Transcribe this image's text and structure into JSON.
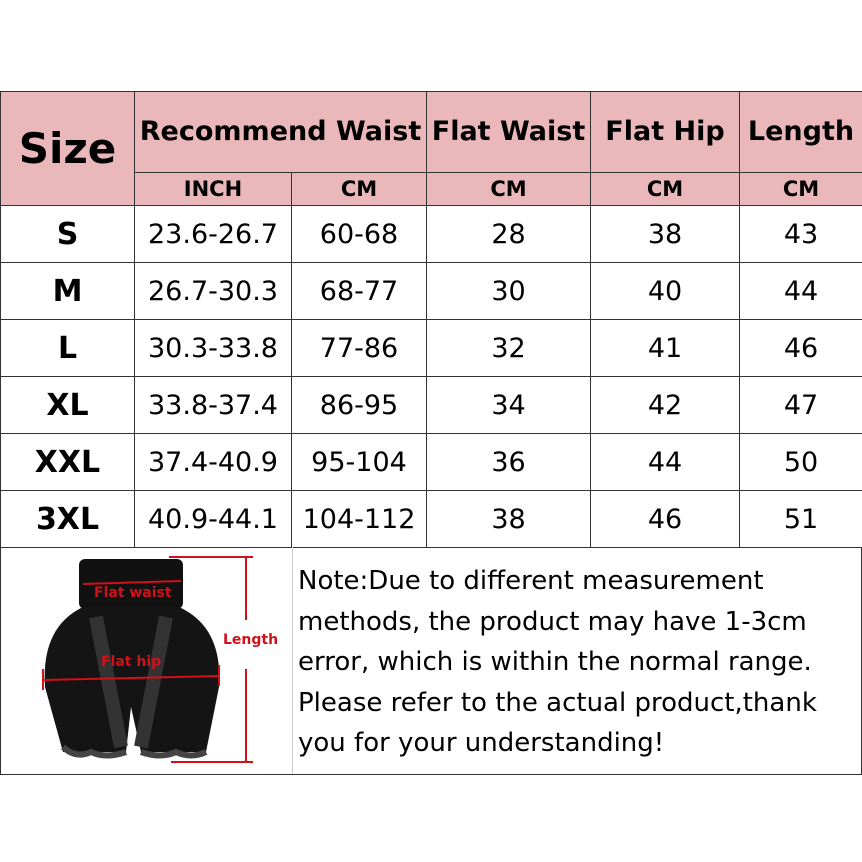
{
  "header": {
    "size": "Size",
    "recommend_waist": "Recommend Waist",
    "flat_waist": "Flat Waist",
    "flat_hip": "Flat Hip",
    "length": "Length"
  },
  "units": [
    "INCH",
    "CM",
    "CM",
    "CM",
    "CM"
  ],
  "rows": [
    [
      "S",
      "23.6-26.7",
      "60-68",
      "28",
      "38",
      "43"
    ],
    [
      "M",
      "26.7-30.3",
      "68-77",
      "30",
      "40",
      "44"
    ],
    [
      "L",
      "30.3-33.8",
      "77-86",
      "32",
      "41",
      "46"
    ],
    [
      "XL",
      "33.8-37.4",
      "86-95",
      "34",
      "42",
      "47"
    ],
    [
      "XXL",
      "37.4-40.9",
      "95-104",
      "36",
      "44",
      "50"
    ],
    [
      "3XL",
      "40.9-44.1",
      "104-112",
      "38",
      "46",
      "51"
    ]
  ],
  "diagram": {
    "labels": {
      "flat_waist": "Flat waist",
      "flat_hip": "Flat hip",
      "length": "Length"
    }
  },
  "note": "Note:Due to different measurement methods, the product may have 1-3cm error, which is within the normal range. Please refer to the actual product,thank you for your understanding!",
  "colors": {
    "header_bg": "#eab8bb",
    "measure_red": "#d0101a"
  }
}
